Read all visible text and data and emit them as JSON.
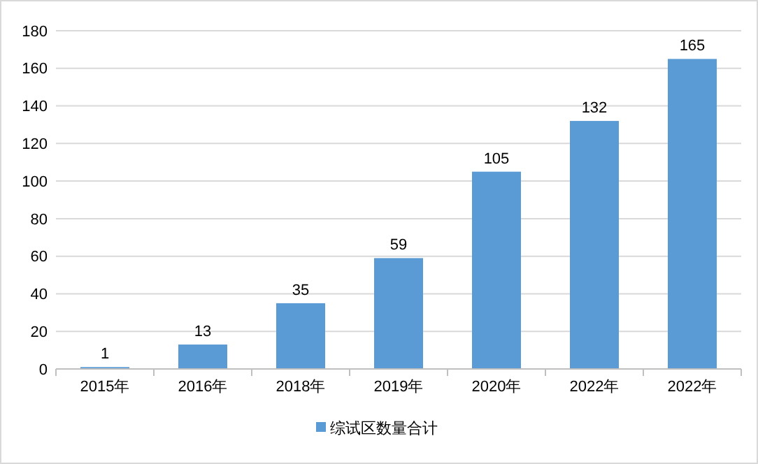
{
  "chart_data": {
    "type": "bar",
    "categories": [
      "2015年",
      "2016年",
      "2018年",
      "2019年",
      "2020年",
      "2022年",
      "2022年"
    ],
    "series": [
      {
        "name": "综试区数量合计",
        "color": "#5b9bd5",
        "values": [
          1,
          13,
          35,
          59,
          105,
          132,
          165
        ]
      }
    ],
    "ylim": [
      0,
      180
    ],
    "yticks": [
      0,
      20,
      40,
      60,
      80,
      100,
      120,
      140,
      160,
      180
    ],
    "grid": "y",
    "data_labels": true,
    "legend": "bottom"
  }
}
